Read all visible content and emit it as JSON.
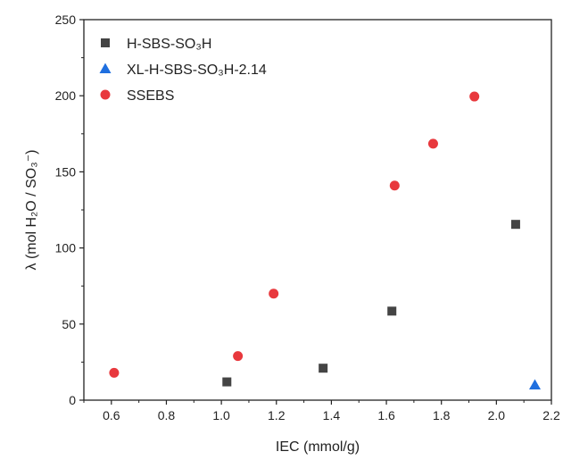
{
  "chart_data": {
    "type": "scatter",
    "xlabel": "IEC (mmol/g)",
    "ylabel": "λ (mol H₂O / SO₃⁻)",
    "xlim": [
      0.5,
      2.2
    ],
    "ylim": [
      0,
      250
    ],
    "x_ticks": [
      "0.6",
      "0.8",
      "1.0",
      "1.2",
      "1.4",
      "1.6",
      "1.8",
      "2.0",
      "2.2"
    ],
    "y_ticks": [
      "0",
      "50",
      "100",
      "150",
      "200",
      "250"
    ],
    "grid": false,
    "legend_position": "top-left",
    "series": [
      {
        "name": "H-SBS-SO₃H",
        "marker": "square",
        "color": "#444444",
        "points": [
          {
            "x": 1.02,
            "y": 12
          },
          {
            "x": 1.37,
            "y": 21
          },
          {
            "x": 1.62,
            "y": 58.5
          },
          {
            "x": 2.07,
            "y": 115.5
          }
        ]
      },
      {
        "name": "XL-H-SBS-SO₃H-2.14",
        "marker": "triangle",
        "color": "#1f6fdf",
        "points": [
          {
            "x": 2.14,
            "y": 10
          }
        ]
      },
      {
        "name": "SSEBS",
        "marker": "circle",
        "color": "#e8383d",
        "points": [
          {
            "x": 0.61,
            "y": 18
          },
          {
            "x": 1.06,
            "y": 29
          },
          {
            "x": 1.19,
            "y": 70
          },
          {
            "x": 1.63,
            "y": 141
          },
          {
            "x": 1.77,
            "y": 168.5
          },
          {
            "x": 1.92,
            "y": 199.5
          }
        ]
      }
    ]
  }
}
